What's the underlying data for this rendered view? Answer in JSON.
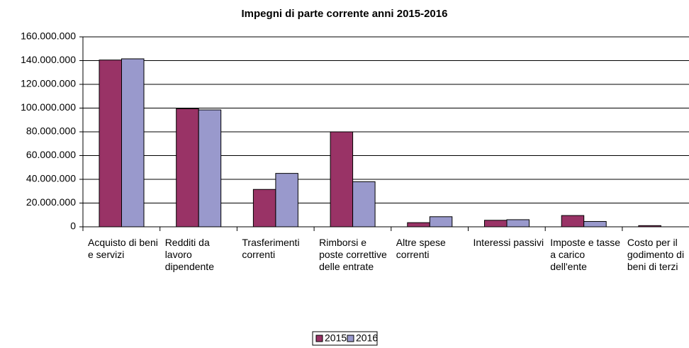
{
  "chart_data": {
    "type": "bar",
    "title": "Impegni di parte corrente anni 2015-2016",
    "categories": [
      "Acquisto di beni e servizi",
      "Redditi da lavoro dipendente",
      "Trasferimenti correnti",
      "Rimborsi e poste correttive delle entrate",
      "Altre spese correnti",
      "Interessi passivi",
      "Imposte e tasse a carico dell'ente",
      "Costo per il godimento di beni di terzi"
    ],
    "series": [
      {
        "name": "2015",
        "color": "#993366",
        "values": [
          140500000,
          99500000,
          31500000,
          80000000,
          3500000,
          5500000,
          9500000,
          1000000
        ]
      },
      {
        "name": "2016",
        "color": "#9999cc",
        "values": [
          141500000,
          98500000,
          45000000,
          38000000,
          8500000,
          6000000,
          4500000,
          0
        ]
      }
    ],
    "ylim": [
      0,
      160000000
    ],
    "yticks": [
      0,
      {
        "value": 20000000,
        "label": "20.000.000"
      },
      {
        "value": 40000000,
        "label": "40.000.000"
      },
      {
        "value": 60000000,
        "label": "60.000.000"
      },
      {
        "value": 80000000,
        "label": "80.000.000"
      },
      {
        "value": 100000000,
        "label": "100.000.000"
      },
      {
        "value": 120000000,
        "label": "120.000.000"
      },
      {
        "value": 140000000,
        "label": "140.000.000"
      },
      {
        "value": 160000000,
        "label": "160.000.000"
      }
    ],
    "grid": true,
    "legend": "bottom"
  }
}
